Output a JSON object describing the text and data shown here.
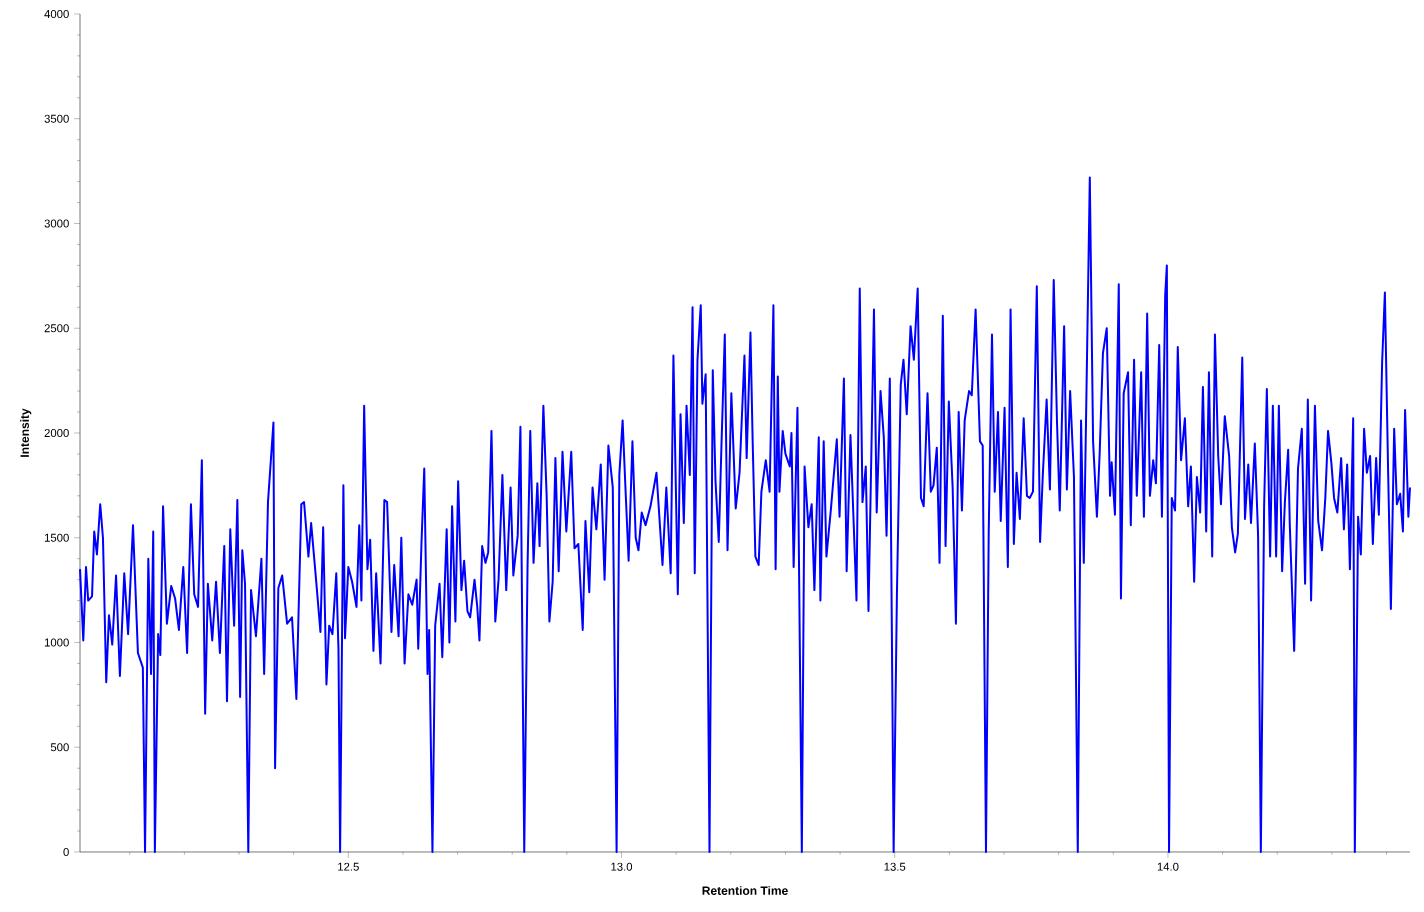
{
  "chart_data": {
    "type": "line",
    "xlabel": "Retention Time",
    "ylabel": "Intensity",
    "color": "#0000ff",
    "line_style": "solid",
    "xlim": [
      12.009,
      14.443
    ],
    "ylim": [
      0,
      4000
    ],
    "xticks": [
      {
        "value": 12.1,
        "label": null
      },
      {
        "value": 12.2,
        "label": null
      },
      {
        "value": 12.3,
        "label": null
      },
      {
        "value": 12.4,
        "label": null
      },
      12.5,
      {
        "value": 12.6,
        "label": null
      },
      {
        "value": 12.7,
        "label": null
      },
      {
        "value": 12.8,
        "label": null
      },
      {
        "value": 12.9,
        "label": null
      },
      {
        "value": 13.0,
        "label": "13.0"
      },
      {
        "value": 13.1,
        "label": null
      },
      {
        "value": 13.2,
        "label": null
      },
      {
        "value": 13.3,
        "label": null
      },
      {
        "value": 13.4,
        "label": null
      },
      13.5,
      {
        "value": 13.6,
        "label": null
      },
      {
        "value": 13.7,
        "label": null
      },
      {
        "value": 13.8,
        "label": null
      },
      {
        "value": 13.9,
        "label": null
      },
      {
        "value": 14.0,
        "label": "14.0"
      },
      {
        "value": 14.1,
        "label": null
      },
      {
        "value": 14.2,
        "label": null
      },
      {
        "value": 14.3,
        "label": null
      },
      {
        "value": 14.4,
        "label": null
      }
    ],
    "yticks": [
      0,
      {
        "value": 100,
        "label": null
      },
      {
        "value": 200,
        "label": null
      },
      {
        "value": 300,
        "label": null
      },
      {
        "value": 400,
        "label": null
      },
      500,
      {
        "value": 600,
        "label": null
      },
      {
        "value": 700,
        "label": null
      },
      {
        "value": 800,
        "label": null
      },
      {
        "value": 900,
        "label": null
      },
      1000,
      {
        "value": 1100,
        "label": null
      },
      {
        "value": 1200,
        "label": null
      },
      {
        "value": 1300,
        "label": null
      },
      {
        "value": 1400,
        "label": null
      },
      1500,
      {
        "value": 1600,
        "label": null
      },
      {
        "value": 1700,
        "label": null
      },
      {
        "value": 1800,
        "label": null
      },
      {
        "value": 1900,
        "label": null
      },
      2000,
      {
        "value": 2100,
        "label": null
      },
      {
        "value": 2200,
        "label": null
      },
      {
        "value": 2300,
        "label": null
      },
      {
        "value": 2400,
        "label": null
      },
      2500,
      {
        "value": 2600,
        "label": null
      },
      {
        "value": 2700,
        "label": null
      },
      {
        "value": 2800,
        "label": null
      },
      {
        "value": 2900,
        "label": null
      },
      3000,
      {
        "value": 3100,
        "label": null
      },
      {
        "value": 3200,
        "label": null
      },
      {
        "value": 3300,
        "label": null
      },
      {
        "value": 3400,
        "label": null
      },
      3500,
      {
        "value": 3600,
        "label": null
      },
      {
        "value": 3700,
        "label": null
      },
      {
        "value": 3800,
        "label": null
      },
      {
        "value": 3900,
        "label": null
      },
      4000
    ],
    "x": [
      12.009,
      12.015,
      12.02,
      12.024,
      12.031,
      12.035,
      12.04,
      12.046,
      12.051,
      12.057,
      12.062,
      12.068,
      12.075,
      12.082,
      12.09,
      12.097,
      12.106,
      12.115,
      12.124,
      12.128,
      12.134,
      12.139,
      12.143,
      12.146,
      12.152,
      12.156,
      12.161,
      12.168,
      12.176,
      12.183,
      12.19,
      12.198,
      12.205,
      12.212,
      12.218,
      12.225,
      12.232,
      12.238,
      12.243,
      12.251,
      12.258,
      12.265,
      12.273,
      12.278,
      12.284,
      12.291,
      12.297,
      12.302,
      12.306,
      12.311,
      12.317,
      12.322,
      12.331,
      12.341,
      12.346,
      12.353,
      12.363,
      12.366,
      12.372,
      12.379,
      12.388,
      12.397,
      12.405,
      12.414,
      12.419,
      12.427,
      12.432,
      12.441,
      12.449,
      12.454,
      12.46,
      12.465,
      12.471,
      12.478,
      12.482,
      12.485,
      12.491,
      12.494,
      12.5,
      12.507,
      12.515,
      12.52,
      12.524,
      12.529,
      12.535,
      12.54,
      12.546,
      12.551,
      12.559,
      12.566,
      12.571,
      12.579,
      12.584,
      12.592,
      12.597,
      12.603,
      12.61,
      12.617,
      12.625,
      12.628,
      12.634,
      12.639,
      12.645,
      12.648,
      12.654,
      12.659,
      12.667,
      12.672,
      12.68,
      12.685,
      12.69,
      12.696,
      12.701,
      12.707,
      12.712,
      12.718,
      12.723,
      12.731,
      12.736,
      12.74,
      12.745,
      12.751,
      12.756,
      12.762,
      12.769,
      12.775,
      12.782,
      12.789,
      12.797,
      12.802,
      12.81,
      12.815,
      12.822,
      12.828,
      12.833,
      12.839,
      12.846,
      12.85,
      12.857,
      12.863,
      12.868,
      12.874,
      12.879,
      12.885,
      12.892,
      12.899,
      12.908,
      12.914,
      12.921,
      12.929,
      12.934,
      12.941,
      12.947,
      12.954,
      12.962,
      12.969,
      12.976,
      12.984,
      12.991,
      12.996,
      13.002,
      13.007,
      13.013,
      13.02,
      13.026,
      13.031,
      13.037,
      13.044,
      13.053,
      13.064,
      13.071,
      13.075,
      13.082,
      13.09,
      13.095,
      13.103,
      13.108,
      13.114,
      13.119,
      13.125,
      13.13,
      13.134,
      13.139,
      13.145,
      13.148,
      13.154,
      13.161,
      13.167,
      13.172,
      13.178,
      13.183,
      13.189,
      13.194,
      13.201,
      13.209,
      13.216,
      13.225,
      13.229,
      13.236,
      13.24,
      13.245,
      13.251,
      13.256,
      13.264,
      13.271,
      13.278,
      13.282,
      13.286,
      13.289,
      13.295,
      13.3,
      13.308,
      13.311,
      13.315,
      13.322,
      13.33,
      13.335,
      13.342,
      13.348,
      13.353,
      13.361,
      13.364,
      13.37,
      13.375,
      13.383,
      13.394,
      13.399,
      13.407,
      13.412,
      13.419,
      13.43,
      13.436,
      13.441,
      13.447,
      13.452,
      13.462,
      13.467,
      13.474,
      13.48,
      13.485,
      13.491,
      13.498,
      13.504,
      13.511,
      13.516,
      13.522,
      13.529,
      13.535,
      13.542,
      13.548,
      13.553,
      13.56,
      13.566,
      13.571,
      13.577,
      13.582,
      13.588,
      13.593,
      13.599,
      13.606,
      13.612,
      13.617,
      13.623,
      13.628,
      13.636,
      13.641,
      13.648,
      13.656,
      13.661,
      13.667,
      13.672,
      13.678,
      13.683,
      13.689,
      13.694,
      13.701,
      13.707,
      13.712,
      13.718,
      13.723,
      13.729,
      13.736,
      13.742,
      13.747,
      13.753,
      13.76,
      13.766,
      13.771,
      13.778,
      13.784,
      13.791,
      13.797,
      13.802,
      13.81,
      13.815,
      13.821,
      13.828,
      13.835,
      13.841,
      13.846,
      13.852,
      13.857,
      13.863,
      13.87,
      13.875,
      13.881,
      13.888,
      13.894,
      13.897,
      13.903,
      13.91,
      13.914,
      13.919,
      13.927,
      13.932,
      13.938,
      13.943,
      13.951,
      13.956,
      13.962,
      13.967,
      13.973,
      13.978,
      13.984,
      13.989,
      13.995,
      13.998,
      14.002,
      14.007,
      14.013,
      14.018,
      14.024,
      14.031,
      14.037,
      14.042,
      14.048,
      14.053,
      14.059,
      14.064,
      14.07,
      14.075,
      14.081,
      14.086,
      14.092,
      14.097,
      14.104,
      14.112,
      14.117,
      14.123,
      14.128,
      14.136,
      14.141,
      14.147,
      14.152,
      14.159,
      14.165,
      14.17,
      14.176,
      14.181,
      14.187,
      14.192,
      14.198,
      14.203,
      14.209,
      14.214,
      14.22,
      14.223,
      14.231,
      14.238,
      14.245,
      14.251,
      14.256,
      14.262,
      14.269,
      14.275,
      14.282,
      14.288,
      14.293,
      14.299,
      14.304,
      14.31,
      14.317,
      14.322,
      14.328,
      14.333,
      14.339,
      14.342,
      14.348,
      14.353,
      14.359,
      14.364,
      14.37,
      14.375,
      14.381,
      14.386,
      14.392,
      14.397,
      14.403,
      14.408,
      14.414,
      14.419,
      14.425,
      14.43,
      14.434,
      14.44,
      14.443
    ],
    "values": [
      1350,
      1010,
      1360,
      1200,
      1220,
      1530,
      1420,
      1660,
      1500,
      810,
      1130,
      990,
      1320,
      840,
      1330,
      1040,
      1560,
      950,
      880,
      0,
      1400,
      850,
      1530,
      0,
      1040,
      940,
      1650,
      1090,
      1270,
      1210,
      1060,
      1360,
      950,
      1660,
      1230,
      1170,
      1870,
      660,
      1280,
      1010,
      1290,
      950,
      1460,
      720,
      1540,
      1080,
      1680,
      740,
      1440,
      1280,
      0,
      1250,
      1030,
      1400,
      850,
      1670,
      2050,
      400,
      1260,
      1320,
      1090,
      1120,
      730,
      1660,
      1670,
      1410,
      1570,
      1300,
      1050,
      1550,
      800,
      1080,
      1040,
      1330,
      970,
      0,
      1750,
      1020,
      1360,
      1290,
      1170,
      1560,
      1200,
      2130,
      1350,
      1490,
      960,
      1330,
      900,
      1680,
      1670,
      1050,
      1370,
      1030,
      1500,
      900,
      1230,
      1180,
      1300,
      970,
      1480,
      1830,
      850,
      1060,
      0,
      1080,
      1280,
      930,
      1540,
      1000,
      1650,
      1100,
      1770,
      1250,
      1390,
      1150,
      1120,
      1300,
      1170,
      1010,
      1460,
      1380,
      1430,
      2010,
      1100,
      1300,
      1800,
      1250,
      1740,
      1320,
      1510,
      2030,
      0,
      1360,
      2010,
      1380,
      1760,
      1460,
      2130,
      1700,
      1100,
      1290,
      1880,
      1340,
      1910,
      1530,
      1910,
      1450,
      1470,
      1060,
      1580,
      1240,
      1740,
      1540,
      1850,
      1300,
      1940,
      1740,
      0,
      1800,
      2060,
      1750,
      1390,
      1960,
      1500,
      1440,
      1620,
      1560,
      1650,
      1810,
      1530,
      1370,
      1740,
      1330,
      2370,
      1230,
      2090,
      1570,
      2130,
      1800,
      2600,
      1330,
      2350,
      2610,
      2140,
      2280,
      0,
      2300,
      1770,
      1480,
      1950,
      2470,
      1440,
      2190,
      1640,
      1810,
      2370,
      1880,
      2480,
      1960,
      1410,
      1370,
      1720,
      1870,
      1720,
      2610,
      1350,
      2270,
      1720,
      2010,
      1900,
      1840,
      2000,
      1360,
      2120,
      0,
      1840,
      1550,
      1660,
      1250,
      1980,
      1200,
      1960,
      1410,
      1630,
      1970,
      1600,
      2260,
      1340,
      1990,
      1200,
      2690,
      1670,
      1840,
      1150,
      2590,
      1620,
      2200,
      1980,
      1510,
      2260,
      0,
      1230,
      2230,
      2350,
      2090,
      2510,
      2350,
      2690,
      1690,
      1650,
      2190,
      1720,
      1750,
      1930,
      1380,
      2560,
      1460,
      2150,
      1740,
      1090,
      2100,
      1630,
      2060,
      2200,
      2180,
      2590,
      1960,
      1940,
      0,
      1530,
      2470,
      1720,
      2100,
      1580,
      2120,
      1360,
      2590,
      1470,
      1810,
      1590,
      2070,
      1700,
      1690,
      1720,
      2700,
      1480,
      1800,
      2160,
      1730,
      2730,
      2050,
      1630,
      2510,
      1730,
      2200,
      1790,
      0,
      2060,
      1380,
      2380,
      3220,
      1960,
      1600,
      1900,
      2380,
      2500,
      1700,
      1860,
      1610,
      2710,
      1210,
      2190,
      2290,
      1560,
      2350,
      1700,
      2290,
      1600,
      2570,
      1700,
      1870,
      1760,
      2420,
      1600,
      2660,
      2800,
      0,
      1690,
      1630,
      2410,
      1870,
      2070,
      1650,
      1840,
      1290,
      1790,
      1620,
      2220,
      1530,
      2290,
      1410,
      2470,
      1890,
      1660,
      2080,
      1890,
      1550,
      1430,
      1520,
      2360,
      1590,
      1850,
      1570,
      1950,
      1510,
      0,
      1650,
      2210,
      1410,
      2130,
      1410,
      2130,
      1340,
      1670,
      1920,
      1560,
      960,
      1830,
      2020,
      1280,
      2160,
      1200,
      2130,
      1580,
      1440,
      1690,
      2010,
      1860,
      1690,
      1620,
      1880,
      1540,
      1850,
      1350,
      2070,
      0,
      1600,
      1420,
      2020,
      1810,
      1890,
      1470,
      1880,
      1610,
      2340,
      2670,
      1810,
      1160,
      2020,
      1660,
      1710,
      1530,
      2110,
      1600,
      1740
    ]
  }
}
